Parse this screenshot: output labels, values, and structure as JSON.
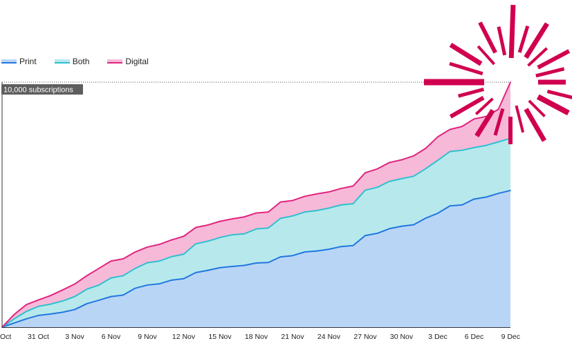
{
  "chart_data": {
    "type": "area",
    "stacked": true,
    "title": "",
    "xlabel": "",
    "ylabel": "",
    "target_label": "10,000 subscriptions",
    "target_value": 10000,
    "ylim": [
      0,
      10000
    ],
    "x_tick_labels": [
      "Oct",
      "31 Oct",
      "3 Nov",
      "6 Nov",
      "9 Nov",
      "12 Nov",
      "15 Nov",
      "18 Nov",
      "21 Nov",
      "24 Nov",
      "27 Nov",
      "30 Nov",
      "3 Dec",
      "6 Dec",
      "9 Dec"
    ],
    "legend_position": "top-left",
    "colors": {
      "Print": {
        "line": "#1f77e0",
        "fill": "#b9d5f6"
      },
      "Both": {
        "line": "#2fbfcf",
        "fill": "#b7e8ec"
      },
      "Digital": {
        "line": "#e0247f",
        "fill": "#f7b9d8"
      },
      "burst": "#d0004f"
    },
    "x": [
      "28 Oct",
      "29 Oct",
      "30 Oct",
      "31 Oct",
      "1 Nov",
      "2 Nov",
      "3 Nov",
      "4 Nov",
      "5 Nov",
      "6 Nov",
      "7 Nov",
      "8 Nov",
      "9 Nov",
      "10 Nov",
      "11 Nov",
      "12 Nov",
      "13 Nov",
      "14 Nov",
      "15 Nov",
      "16 Nov",
      "17 Nov",
      "18 Nov",
      "19 Nov",
      "20 Nov",
      "21 Nov",
      "22 Nov",
      "23 Nov",
      "24 Nov",
      "25 Nov",
      "26 Nov",
      "27 Nov",
      "28 Nov",
      "29 Nov",
      "30 Nov",
      "1 Dec",
      "2 Dec",
      "3 Dec",
      "4 Dec",
      "5 Dec",
      "6 Dec",
      "7 Dec",
      "8 Dec",
      "9 Dec"
    ],
    "series": [
      {
        "name": "Print",
        "values": [
          0,
          170,
          340,
          480,
          540,
          610,
          720,
          960,
          1100,
          1250,
          1310,
          1590,
          1720,
          1770,
          1920,
          1980,
          2230,
          2320,
          2430,
          2480,
          2520,
          2620,
          2640,
          2870,
          2920,
          3070,
          3110,
          3180,
          3290,
          3330,
          3740,
          3830,
          4020,
          4120,
          4180,
          4450,
          4650,
          4950,
          4990,
          5230,
          5310,
          5460,
          5580
        ]
      },
      {
        "name": "Both",
        "values": [
          0,
          340,
          640,
          850,
          940,
          1070,
          1250,
          1550,
          1720,
          2010,
          2100,
          2400,
          2630,
          2700,
          2880,
          2980,
          3400,
          3510,
          3660,
          3770,
          3810,
          4010,
          4050,
          4440,
          4540,
          4700,
          4760,
          4860,
          4990,
          5040,
          5590,
          5710,
          5950,
          6060,
          6160,
          6470,
          6810,
          7170,
          7220,
          7330,
          7420,
          7560,
          7710
        ]
      },
      {
        "name": "Digital",
        "values": [
          0,
          520,
          920,
          1110,
          1290,
          1520,
          1760,
          2100,
          2400,
          2700,
          2790,
          3070,
          3270,
          3380,
          3560,
          3710,
          4070,
          4170,
          4320,
          4420,
          4500,
          4660,
          4700,
          5110,
          5170,
          5340,
          5440,
          5520,
          5660,
          5760,
          6300,
          6460,
          6720,
          6830,
          6990,
          7300,
          7770,
          8070,
          8190,
          8500,
          8600,
          8890,
          10000
        ]
      }
    ]
  }
}
